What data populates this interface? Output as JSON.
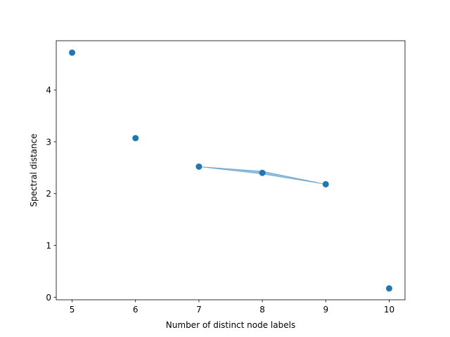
{
  "chart_data": {
    "type": "scatter",
    "title": "",
    "xlabel": "Number of distinct node labels",
    "ylabel": "Spectral distance",
    "xlim": [
      4.75,
      10.25
    ],
    "ylim": [
      -0.05,
      4.95
    ],
    "xticks": [
      5,
      6,
      7,
      8,
      9,
      10
    ],
    "yticks": [
      0,
      1,
      2,
      3,
      4
    ],
    "grid": false,
    "legend": "none",
    "series": [
      {
        "x": [
          5,
          6,
          7,
          8,
          9,
          10
        ],
        "y": [
          4.72,
          3.07,
          2.52,
          2.4,
          2.18,
          0.17
        ],
        "color": "#1f77b4"
      }
    ],
    "band": {
      "x": [
        7,
        8,
        9
      ],
      "y_low": [
        2.52,
        2.38,
        2.18
      ],
      "y_high": [
        2.52,
        2.43,
        2.18
      ],
      "color": "#1f77b4"
    }
  }
}
